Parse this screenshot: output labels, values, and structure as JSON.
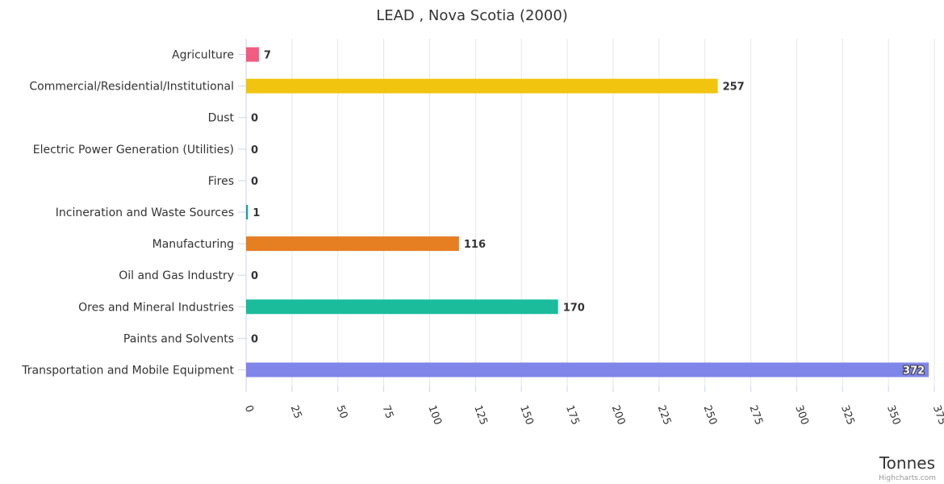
{
  "chart_data": {
    "type": "bar",
    "orientation": "horizontal",
    "title": "LEAD , Nova Scotia (2000)",
    "xlabel": "",
    "ylabel": "Tonnes",
    "categories": [
      "Agriculture",
      "Commercial/Residential/Institutional",
      "Dust",
      "Electric Power Generation (Utilities)",
      "Fires",
      "Incineration and Waste Sources",
      "Manufacturing",
      "Oil and Gas Industry",
      "Ores and Mineral Industries",
      "Paints and Solvents",
      "Transportation and Mobile Equipment"
    ],
    "values": [
      7,
      257,
      0,
      0,
      0,
      1,
      116,
      0,
      170,
      0,
      372
    ],
    "colors": [
      "#f15c80",
      "#f1c40f",
      "#2b908f",
      "#e74c3c",
      "#7f8c8d",
      "#1f9bb0",
      "#e67e22",
      "#8e44ad",
      "#1abc9c",
      "#34495e",
      "#8085e9"
    ],
    "value_axis": {
      "min": 0,
      "max": 375,
      "tick_interval": 25,
      "ticks": [
        "0",
        "25",
        "50",
        "75",
        "100",
        "125",
        "150",
        "175",
        "200",
        "225",
        "250",
        "275",
        "300",
        "325",
        "350",
        "375"
      ],
      "label_rotation_deg": 70,
      "grid": true
    },
    "legend": "none",
    "credits": "Highcharts.com"
  }
}
